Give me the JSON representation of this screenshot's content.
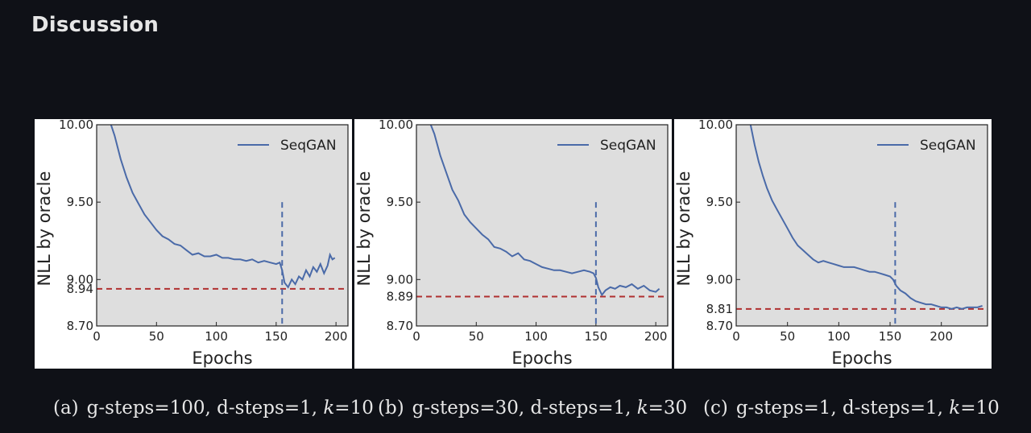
{
  "heading": "Discussion",
  "chart_data": [
    {
      "type": "line",
      "xlabel": "Epochs",
      "ylabel": "NLL by oracle",
      "xlim": [
        0,
        210
      ],
      "ylim": [
        8.7,
        10.0
      ],
      "xticks": [
        0,
        50,
        100,
        150,
        200
      ],
      "yticks": [
        8.7,
        9.0,
        9.5,
        10.0
      ],
      "ytick_labels": [
        "8.70",
        "9.00",
        "9.50",
        "10.00"
      ],
      "baseline": {
        "value": 8.94,
        "label": "8.94",
        "color": "#b03030"
      },
      "switch_epoch": 155,
      "grid": false,
      "legend_position": "top-right",
      "series": [
        {
          "name": "SeqGAN",
          "color": "#4a6aa8",
          "x": [
            12,
            15,
            20,
            25,
            30,
            35,
            40,
            45,
            50,
            55,
            60,
            65,
            70,
            75,
            80,
            85,
            90,
            95,
            100,
            105,
            110,
            115,
            120,
            125,
            130,
            135,
            140,
            145,
            150,
            153,
            155,
            157,
            160,
            163,
            166,
            169,
            172,
            175,
            178,
            181,
            184,
            187,
            190,
            193,
            195,
            197,
            199
          ],
          "y": [
            10.0,
            9.93,
            9.78,
            9.66,
            9.56,
            9.49,
            9.42,
            9.37,
            9.32,
            9.28,
            9.26,
            9.23,
            9.22,
            9.19,
            9.16,
            9.17,
            9.15,
            9.15,
            9.16,
            9.14,
            9.14,
            9.13,
            9.13,
            9.12,
            9.13,
            9.11,
            9.12,
            9.11,
            9.1,
            9.11,
            9.06,
            8.98,
            8.95,
            9.0,
            8.97,
            9.02,
            9.0,
            9.06,
            9.02,
            9.08,
            9.05,
            9.1,
            9.04,
            9.09,
            9.16,
            9.13,
            9.14
          ]
        }
      ]
    },
    {
      "type": "line",
      "xlabel": "Epochs",
      "ylabel": "NLL by oracle",
      "xlim": [
        0,
        210
      ],
      "ylim": [
        8.7,
        10.0
      ],
      "xticks": [
        0,
        50,
        100,
        150,
        200
      ],
      "yticks": [
        8.7,
        9.0,
        9.5,
        10.0
      ],
      "ytick_labels": [
        "8.70",
        "9.00",
        "9.50",
        "10.00"
      ],
      "baseline": {
        "value": 8.89,
        "label": "8.89",
        "color": "#b03030"
      },
      "switch_epoch": 150,
      "grid": false,
      "legend_position": "top-right",
      "series": [
        {
          "name": "SeqGAN",
          "color": "#4a6aa8",
          "x": [
            12,
            15,
            20,
            25,
            30,
            35,
            40,
            45,
            50,
            55,
            60,
            65,
            70,
            75,
            80,
            85,
            90,
            95,
            100,
            105,
            110,
            115,
            120,
            125,
            130,
            135,
            140,
            145,
            148,
            150,
            152,
            155,
            158,
            162,
            166,
            170,
            175,
            180,
            185,
            190,
            195,
            200,
            203
          ],
          "y": [
            10.0,
            9.94,
            9.8,
            9.69,
            9.58,
            9.51,
            9.42,
            9.37,
            9.33,
            9.29,
            9.26,
            9.21,
            9.2,
            9.18,
            9.15,
            9.17,
            9.13,
            9.12,
            9.1,
            9.08,
            9.07,
            9.06,
            9.06,
            9.05,
            9.04,
            9.05,
            9.06,
            9.05,
            9.04,
            9.01,
            8.95,
            8.9,
            8.93,
            8.95,
            8.94,
            8.96,
            8.95,
            8.97,
            8.94,
            8.96,
            8.93,
            8.92,
            8.94
          ]
        }
      ]
    },
    {
      "type": "line",
      "xlabel": "Epochs",
      "ylabel": "NLL by oracle",
      "xlim": [
        0,
        245
      ],
      "ylim": [
        8.7,
        10.0
      ],
      "xticks": [
        0,
        50,
        100,
        150,
        200
      ],
      "yticks": [
        8.7,
        9.0,
        9.5,
        10.0
      ],
      "ytick_labels": [
        "8.70",
        "9.00",
        "9.50",
        "10.00"
      ],
      "baseline": {
        "value": 8.81,
        "label": "8.81",
        "color": "#b03030"
      },
      "switch_epoch": 155,
      "grid": false,
      "legend_position": "top-right",
      "series": [
        {
          "name": "SeqGAN",
          "color": "#4a6aa8",
          "x": [
            14,
            18,
            22,
            26,
            30,
            35,
            40,
            45,
            50,
            55,
            60,
            65,
            70,
            75,
            80,
            85,
            90,
            95,
            100,
            105,
            110,
            115,
            120,
            125,
            130,
            135,
            140,
            145,
            150,
            153,
            156,
            160,
            165,
            170,
            175,
            180,
            185,
            190,
            195,
            200,
            205,
            210,
            215,
            220,
            225,
            230,
            235,
            240
          ],
          "y": [
            10.0,
            9.87,
            9.76,
            9.67,
            9.59,
            9.51,
            9.45,
            9.39,
            9.33,
            9.27,
            9.22,
            9.19,
            9.16,
            9.13,
            9.11,
            9.12,
            9.11,
            9.1,
            9.09,
            9.08,
            9.08,
            9.08,
            9.07,
            9.06,
            9.05,
            9.05,
            9.04,
            9.03,
            9.02,
            9.0,
            8.96,
            8.93,
            8.91,
            8.88,
            8.86,
            8.85,
            8.84,
            8.84,
            8.83,
            8.82,
            8.82,
            8.81,
            8.82,
            8.81,
            8.82,
            8.82,
            8.82,
            8.83
          ]
        }
      ]
    }
  ],
  "captions": [
    {
      "tag": "(a)",
      "text": "g-steps=100, d-steps=1, ",
      "k_symbol": "k",
      "k_value": "=10"
    },
    {
      "tag": "(b)",
      "text": "g-steps=30, d-steps=1, ",
      "k_symbol": "k",
      "k_value": "=30"
    },
    {
      "tag": "(c)",
      "text": "g-steps=1, d-steps=1, ",
      "k_symbol": "k",
      "k_value": "=10"
    }
  ]
}
